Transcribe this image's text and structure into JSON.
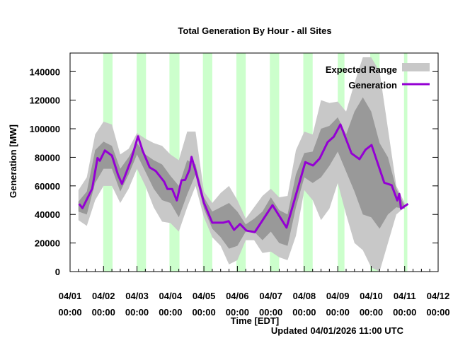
{
  "chart_data": {
    "type": "area",
    "title": "Total Generation By Hour - all Sites",
    "xlabel": "Time [EDT]",
    "ylabel": "Generation [MW]",
    "footer": "Updated 04/01/2026 11:00 UTC",
    "ylim": [
      0,
      153000
    ],
    "xlim_days": [
      0,
      11
    ],
    "grid": false,
    "legend_position": "top-right",
    "legend": [
      {
        "label": "Expected Range",
        "kind": "band",
        "color": "#c8c8c8"
      },
      {
        "label": "Generation",
        "kind": "line",
        "color": "#9400d3"
      }
    ],
    "yticks": [
      0,
      20000,
      40000,
      60000,
      80000,
      100000,
      120000,
      140000
    ],
    "xticks": [
      {
        "day": 0,
        "date": "04/01",
        "time": "00:00"
      },
      {
        "day": 1,
        "date": "04/02",
        "time": "00:00"
      },
      {
        "day": 2,
        "date": "04/03",
        "time": "00:00"
      },
      {
        "day": 3,
        "date": "04/04",
        "time": "00:00"
      },
      {
        "day": 4,
        "date": "04/05",
        "time": "00:00"
      },
      {
        "day": 5,
        "date": "04/06",
        "time": "00:00"
      },
      {
        "day": 6,
        "date": "04/07",
        "time": "00:00"
      },
      {
        "day": 7,
        "date": "04/08",
        "time": "00:00"
      },
      {
        "day": 8,
        "date": "04/09",
        "time": "00:00"
      },
      {
        "day": 9,
        "date": "04/10",
        "time": "00:00"
      },
      {
        "day": 10,
        "date": "04/11",
        "time": "00:00"
      },
      {
        "day": 11,
        "date": "04/12",
        "time": "00:00"
      }
    ],
    "night_bands_days": [
      [
        0.99,
        1.27
      ],
      [
        1.99,
        2.27
      ],
      [
        2.97,
        3.27
      ],
      [
        3.97,
        4.25
      ],
      [
        4.97,
        5.25
      ],
      [
        5.97,
        6.25
      ],
      [
        6.97,
        7.25
      ],
      [
        8.0,
        8.2
      ],
      [
        8.97,
        9.25
      ],
      [
        9.98,
        10.08
      ]
    ],
    "band_colors": {
      "night": "#ccffcc",
      "outer": "#c8c8c8",
      "inner": "#999999",
      "line": "#9400d3"
    },
    "band_x_days": [
      0.25,
      0.5,
      0.75,
      1.0,
      1.25,
      1.5,
      1.75,
      2.0,
      2.25,
      2.5,
      2.75,
      3.0,
      3.25,
      3.5,
      3.75,
      4.0,
      4.25,
      4.5,
      4.75,
      5.0,
      5.25,
      5.5,
      5.75,
      6.0,
      6.25,
      6.5,
      6.75,
      7.0,
      7.25,
      7.5,
      7.75,
      8.0,
      8.25,
      8.5,
      8.75,
      9.0,
      9.25,
      9.5,
      9.75,
      10.0
    ],
    "outer_upper": [
      57000,
      66000,
      96000,
      105000,
      103000,
      82000,
      86000,
      97000,
      93000,
      90000,
      88000,
      82000,
      78000,
      98000,
      98000,
      56000,
      48000,
      55000,
      60000,
      50000,
      37000,
      45000,
      53000,
      58000,
      52000,
      53000,
      85000,
      98000,
      96000,
      120000,
      118000,
      119000,
      112000,
      132000,
      150000,
      150000,
      140000,
      100000,
      60000,
      48000
    ],
    "outer_lower": [
      36000,
      32000,
      50000,
      60000,
      60000,
      48000,
      58000,
      72000,
      60000,
      45000,
      35000,
      34000,
      28000,
      45000,
      60000,
      38000,
      24000,
      18000,
      5000,
      8000,
      22000,
      22000,
      13000,
      14000,
      10000,
      8000,
      25000,
      57000,
      50000,
      36000,
      44000,
      62000,
      40000,
      20000,
      15000,
      3000,
      0,
      20000,
      40000,
      45000
    ],
    "inner_upper": [
      49000,
      56000,
      85000,
      91000,
      88000,
      72000,
      80000,
      90000,
      82000,
      78000,
      75000,
      67000,
      60000,
      78000,
      75000,
      52000,
      42000,
      45000,
      48000,
      42000,
      33000,
      37000,
      42000,
      52000,
      43000,
      40000,
      68000,
      83000,
      84000,
      100000,
      102000,
      108000,
      96000,
      112000,
      122000,
      112000,
      90000,
      80000,
      58000,
      46000
    ],
    "inner_lower": [
      42000,
      40000,
      62000,
      72000,
      72000,
      56000,
      68000,
      82000,
      70000,
      58000,
      50000,
      48000,
      38000,
      54000,
      68000,
      44000,
      30000,
      24000,
      16000,
      18000,
      28000,
      28000,
      22000,
      28000,
      20000,
      18000,
      45000,
      66000,
      62000,
      66000,
      74000,
      84000,
      70000,
      56000,
      40000,
      38000,
      30000,
      40000,
      45000,
      44000
    ],
    "generation": {
      "x_days": [
        0.27,
        0.37,
        0.66,
        0.82,
        0.89,
        1.04,
        1.25,
        1.43,
        1.55,
        1.82,
        2.03,
        2.17,
        2.38,
        2.56,
        2.81,
        2.91,
        3.05,
        3.19,
        3.33,
        3.44,
        3.57,
        3.63,
        3.76,
        4.0,
        4.25,
        4.57,
        4.74,
        4.9,
        5.08,
        5.27,
        5.52,
        6.05,
        6.47,
        7.03,
        7.26,
        7.46,
        7.7,
        7.88,
        8.08,
        8.41,
        8.65,
        8.83,
        9.01,
        9.39,
        9.61,
        9.78,
        9.84,
        9.89,
        10.1
      ],
      "values": [
        47400,
        44400,
        58000,
        79500,
        77600,
        84800,
        81200,
        68000,
        61400,
        77900,
        94700,
        84500,
        72900,
        70400,
        63000,
        57800,
        57800,
        49800,
        63900,
        64200,
        71300,
        80300,
        69600,
        48200,
        34200,
        34200,
        35300,
        29200,
        33300,
        28700,
        27600,
        46500,
        30800,
        76600,
        74300,
        79200,
        90700,
        94400,
        103000,
        82800,
        78700,
        85300,
        88600,
        62200,
        60500,
        49800,
        54400,
        44000,
        47400
      ]
    }
  }
}
